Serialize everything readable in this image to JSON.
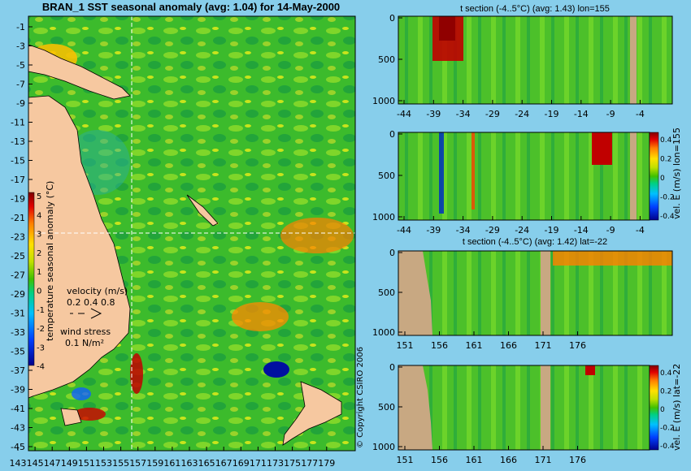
{
  "chart_data": [
    {
      "type": "heatmap",
      "title": "BRAN_1 SST seasonal anomaly (avg: 1.04) for 14-May-2000",
      "x_ticks": [
        "143",
        "145",
        "147",
        "149",
        "151",
        "153",
        "155",
        "157",
        "159",
        "161",
        "163",
        "165",
        "167",
        "169",
        "171",
        "173",
        "175",
        "177",
        "179"
      ],
      "y_ticks": [
        "-1",
        "-3",
        "-5",
        "-7",
        "-9",
        "-11",
        "-13",
        "-15",
        "-17",
        "-19",
        "-21",
        "-23",
        "-25",
        "-27",
        "-29",
        "-31",
        "-33",
        "-35",
        "-37",
        "-39",
        "-41",
        "-43",
        "-45"
      ],
      "xlim": [
        143,
        180
      ],
      "ylim": [
        -45,
        0
      ],
      "colorbar": {
        "label": "temperature seasonal anomaly (°C)",
        "ticks": [
          "5",
          "4",
          "3",
          "2",
          "1",
          "0",
          "-1",
          "-2",
          "-3",
          "-4"
        ],
        "range": [
          -4,
          5
        ]
      },
      "velocity_legend": {
        "title": "velocity (m/s)",
        "values": "0.2 0.4 0.8"
      },
      "wind_legend": {
        "title": "wind stress",
        "value": "0.1 N/m²"
      },
      "section_lines": {
        "lon": 155,
        "lat": -22
      }
    },
    {
      "type": "heatmap",
      "title": "t section (-4..5°C) (avg: 1.43) lon=155",
      "x_ticks": [
        "-44",
        "-39",
        "-34",
        "-29",
        "-24",
        "-19",
        "-14",
        "-9",
        "-4"
      ],
      "y_ticks": [
        "0",
        "500",
        "1000"
      ]
    },
    {
      "type": "heatmap",
      "title": "",
      "x_ticks": [
        "-44",
        "-39",
        "-34",
        "-29",
        "-24",
        "-19",
        "-14",
        "-9",
        "-4"
      ],
      "y_ticks": [
        "0",
        "500",
        "1000"
      ],
      "colorbar": {
        "label": "vel. E (m/s) lon=155",
        "ticks": [
          "0.4",
          "0.2",
          "0",
          "-0.2",
          "-0.4"
        ]
      }
    },
    {
      "type": "heatmap",
      "title": "t section (-4..5°C) (avg: 1.42) lat=-22",
      "x_ticks": [
        "151",
        "156",
        "161",
        "166",
        "171",
        "176"
      ],
      "y_ticks": [
        "0",
        "500",
        "1000"
      ]
    },
    {
      "type": "heatmap",
      "title": "",
      "x_ticks": [
        "151",
        "156",
        "161",
        "166",
        "171",
        "176"
      ],
      "y_ticks": [
        "0",
        "500",
        "1000"
      ],
      "colorbar": {
        "label": "vel. E (m/s) lat=-22",
        "ticks": [
          "0.4",
          "0.2",
          "0",
          "-0.2",
          "-0.4"
        ]
      }
    }
  ],
  "copyright": "© Copyright CSIRO 2006"
}
